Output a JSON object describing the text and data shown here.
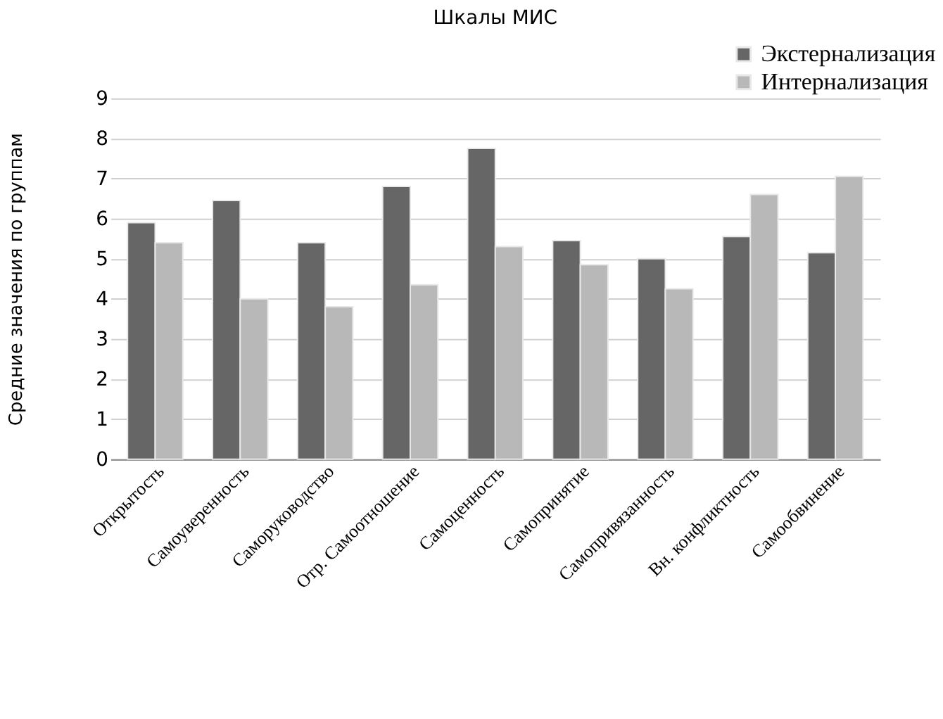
{
  "chart_data": {
    "type": "bar",
    "title": "Шкалы МИС",
    "ylabel": "Средние значения по группам",
    "categories": [
      "Открытость",
      "Самоуверенность",
      "Саморуководство",
      "Отр. Самоотношение",
      "Самоценность",
      "Самопринятие",
      "Самопривязанность",
      "Вн. конфликтность",
      "Самообвинение"
    ],
    "series": [
      {
        "name": "Экстернализация",
        "color": "#666666",
        "values": [
          5.9,
          6.45,
          5.4,
          6.8,
          7.75,
          5.45,
          5.0,
          5.55,
          5.15
        ]
      },
      {
        "name": "Интернализация",
        "color": "#b8b8b8",
        "values": [
          5.4,
          4.0,
          3.8,
          4.35,
          5.3,
          4.85,
          4.25,
          6.6,
          7.05
        ]
      }
    ],
    "ylim": [
      0,
      9
    ],
    "yticks": [
      0,
      1,
      2,
      3,
      4,
      5,
      6,
      7,
      8,
      9
    ],
    "grid": "y",
    "legend": "top right"
  }
}
